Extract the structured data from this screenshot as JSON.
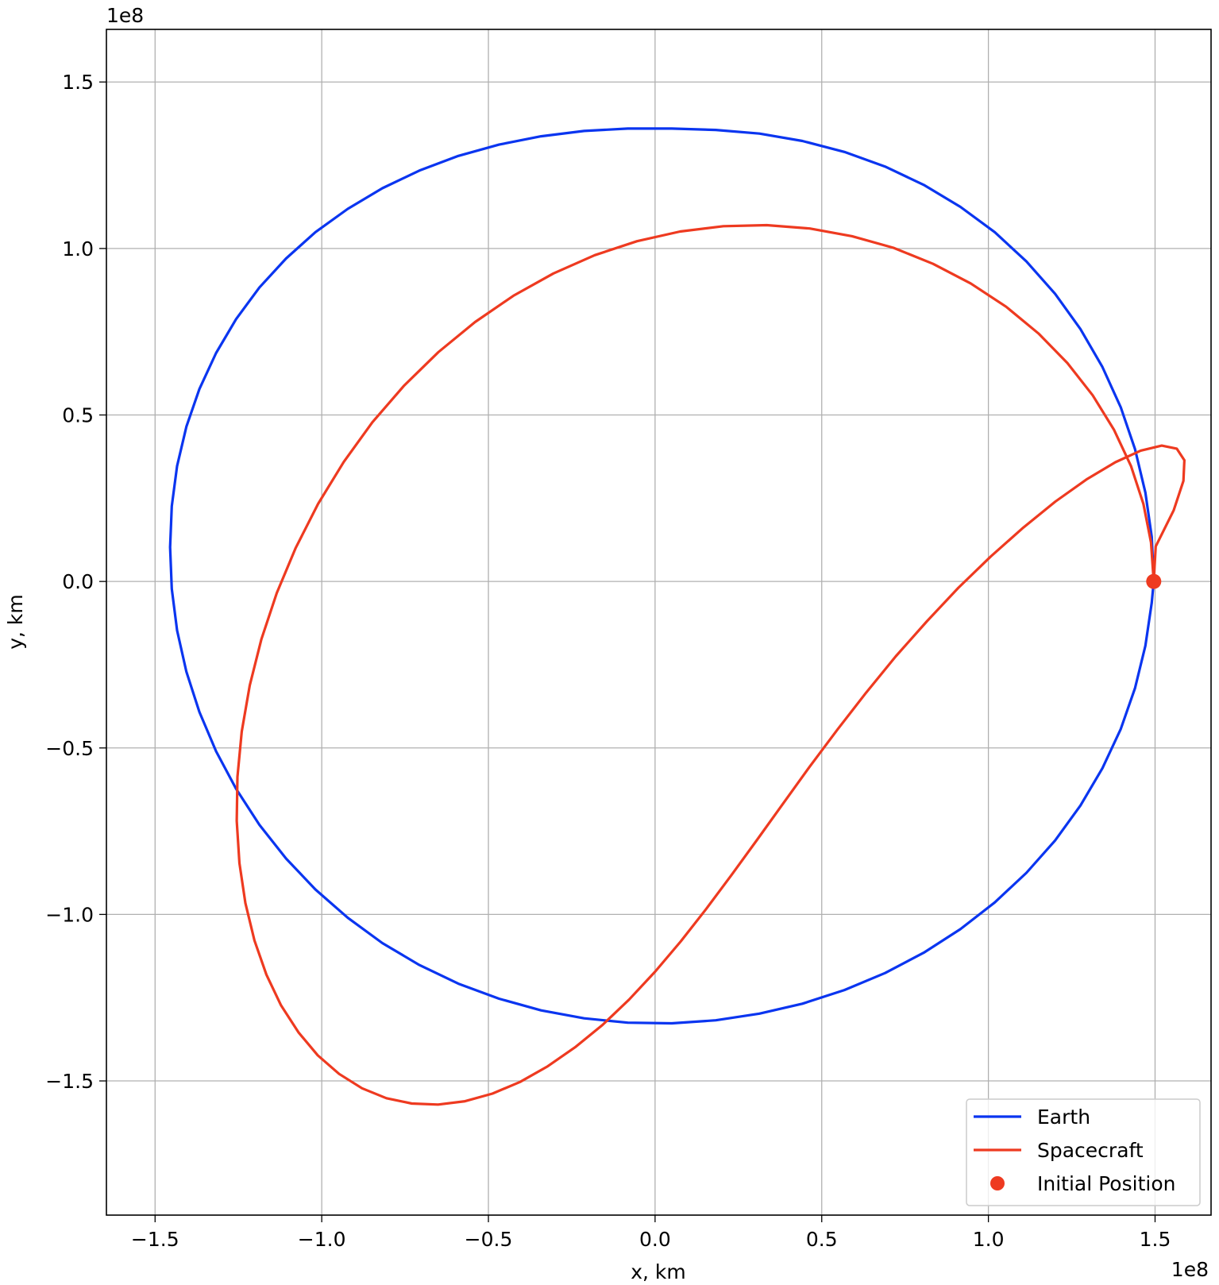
{
  "chart_data": {
    "type": "line",
    "title": "",
    "xlabel": "x, km",
    "ylabel": "y, km",
    "x_offset_label": "1e8",
    "y_offset_label": "1e8",
    "xlim": [
      -1.646,
      1.668
    ],
    "ylim": [
      -1.903,
      1.658
    ],
    "units_scale": "1e8 km",
    "grid": true,
    "legend_position": "lower right",
    "x_ticks": [
      -1.5,
      -1.0,
      -0.5,
      0.0,
      0.5,
      1.0,
      1.5
    ],
    "x_tick_labels": [
      "−1.5",
      "−1.0",
      "−0.5",
      "0.0",
      "0.5",
      "1.0",
      "1.5"
    ],
    "y_ticks": [
      1.5,
      1.0,
      0.5,
      0.0,
      -0.5,
      -1.0,
      -1.5
    ],
    "y_tick_labels": [
      "1.5",
      "1.0",
      "0.5",
      "0.0",
      "−0.5",
      "−1.0",
      "−1.5"
    ],
    "series": [
      {
        "name": "Earth",
        "kind": "line",
        "color": "#0a35f0",
        "x": [
          1.496,
          1.49,
          1.471,
          1.44,
          1.397,
          1.342,
          1.276,
          1.2,
          1.114,
          1.019,
          0.916,
          0.806,
          0.69,
          0.568,
          0.442,
          0.313,
          0.182,
          0.05,
          -0.082,
          -0.213,
          -0.342,
          -0.468,
          -0.59,
          -0.707,
          -0.818,
          -0.922,
          -1.019,
          -1.107,
          -1.187,
          -1.257,
          -1.317,
          -1.367,
          -1.406,
          -1.434,
          -1.45,
          -1.455,
          -1.45,
          -1.434,
          -1.406,
          -1.367,
          -1.317,
          -1.257,
          -1.187,
          -1.107,
          -1.019,
          -0.922,
          -0.818,
          -0.707,
          -0.59,
          -0.468,
          -0.342,
          -0.213,
          -0.082,
          0.05,
          0.182,
          0.313,
          0.442,
          0.568,
          0.69,
          0.806,
          0.916,
          1.019,
          1.114,
          1.2,
          1.276,
          1.342,
          1.397,
          1.44,
          1.471,
          1.49,
          1.496
        ],
        "y": [
          0.0,
          0.134,
          0.267,
          0.397,
          0.523,
          0.644,
          0.758,
          0.864,
          0.961,
          1.049,
          1.125,
          1.191,
          1.246,
          1.29,
          1.323,
          1.345,
          1.356,
          1.36,
          1.36,
          1.353,
          1.337,
          1.312,
          1.278,
          1.234,
          1.181,
          1.119,
          1.049,
          0.97,
          0.883,
          0.788,
          0.686,
          0.578,
          0.465,
          0.347,
          0.226,
          0.103,
          -0.022,
          -0.147,
          -0.271,
          -0.392,
          -0.51,
          -0.623,
          -0.731,
          -0.832,
          -0.925,
          -1.01,
          -1.086,
          -1.152,
          -1.208,
          -1.253,
          -1.288,
          -1.312,
          -1.325,
          -1.327,
          -1.318,
          -1.298,
          -1.268,
          -1.227,
          -1.176,
          -1.115,
          -1.044,
          -0.964,
          -0.875,
          -0.778,
          -0.673,
          -0.561,
          -0.443,
          -0.32,
          -0.193,
          -0.064,
          0.0
        ]
      },
      {
        "name": "Spacecraft",
        "kind": "line",
        "color": "#ee3a20",
        "x": [
          1.496,
          1.488,
          1.465,
          1.428,
          1.377,
          1.313,
          1.237,
          1.15,
          1.053,
          0.947,
          0.834,
          0.715,
          0.591,
          0.464,
          0.335,
          0.205,
          0.075,
          -0.054,
          -0.181,
          -0.305,
          -0.425,
          -0.54,
          -0.65,
          -0.753,
          -0.848,
          -0.934,
          -1.011,
          -1.078,
          -1.135,
          -1.181,
          -1.216,
          -1.24,
          -1.253,
          -1.255,
          -1.247,
          -1.229,
          -1.202,
          -1.166,
          -1.122,
          -1.07,
          -1.012,
          -0.948,
          -0.879,
          -0.806,
          -0.73,
          -0.651,
          -0.57,
          -0.488,
          -0.405,
          -0.322,
          -0.24,
          -0.158,
          -0.078,
          0.0,
          0.077,
          0.153,
          0.229,
          0.306,
          0.384,
          0.464,
          0.547,
          0.633,
          0.722,
          0.815,
          0.91,
          1.007,
          1.105,
          1.201,
          1.294,
          1.381,
          1.457,
          1.52,
          1.565,
          1.588,
          1.585,
          1.556,
          1.502,
          1.496
        ],
        "y": [
          0.0,
          0.117,
          0.233,
          0.346,
          0.455,
          0.559,
          0.656,
          0.745,
          0.825,
          0.895,
          0.954,
          1.002,
          1.037,
          1.06,
          1.07,
          1.067,
          1.051,
          1.022,
          0.98,
          0.925,
          0.858,
          0.779,
          0.689,
          0.588,
          0.478,
          0.359,
          0.233,
          0.101,
          -0.035,
          -0.173,
          -0.312,
          -0.451,
          -0.587,
          -0.719,
          -0.846,
          -0.966,
          -1.078,
          -1.181,
          -1.273,
          -1.354,
          -1.423,
          -1.479,
          -1.522,
          -1.552,
          -1.568,
          -1.571,
          -1.561,
          -1.538,
          -1.503,
          -1.456,
          -1.399,
          -1.332,
          -1.256,
          -1.172,
          -1.081,
          -0.984,
          -0.882,
          -0.776,
          -0.667,
          -0.556,
          -0.445,
          -0.334,
          -0.225,
          -0.12,
          -0.019,
          0.075,
          0.162,
          0.24,
          0.306,
          0.358,
          0.393,
          0.408,
          0.399,
          0.364,
          0.302,
          0.214,
          0.105,
          0.0
        ]
      },
      {
        "name": "Initial Position",
        "kind": "scatter",
        "color": "#ee3a20",
        "x": [
          1.496
        ],
        "y": [
          0.0
        ]
      }
    ]
  }
}
